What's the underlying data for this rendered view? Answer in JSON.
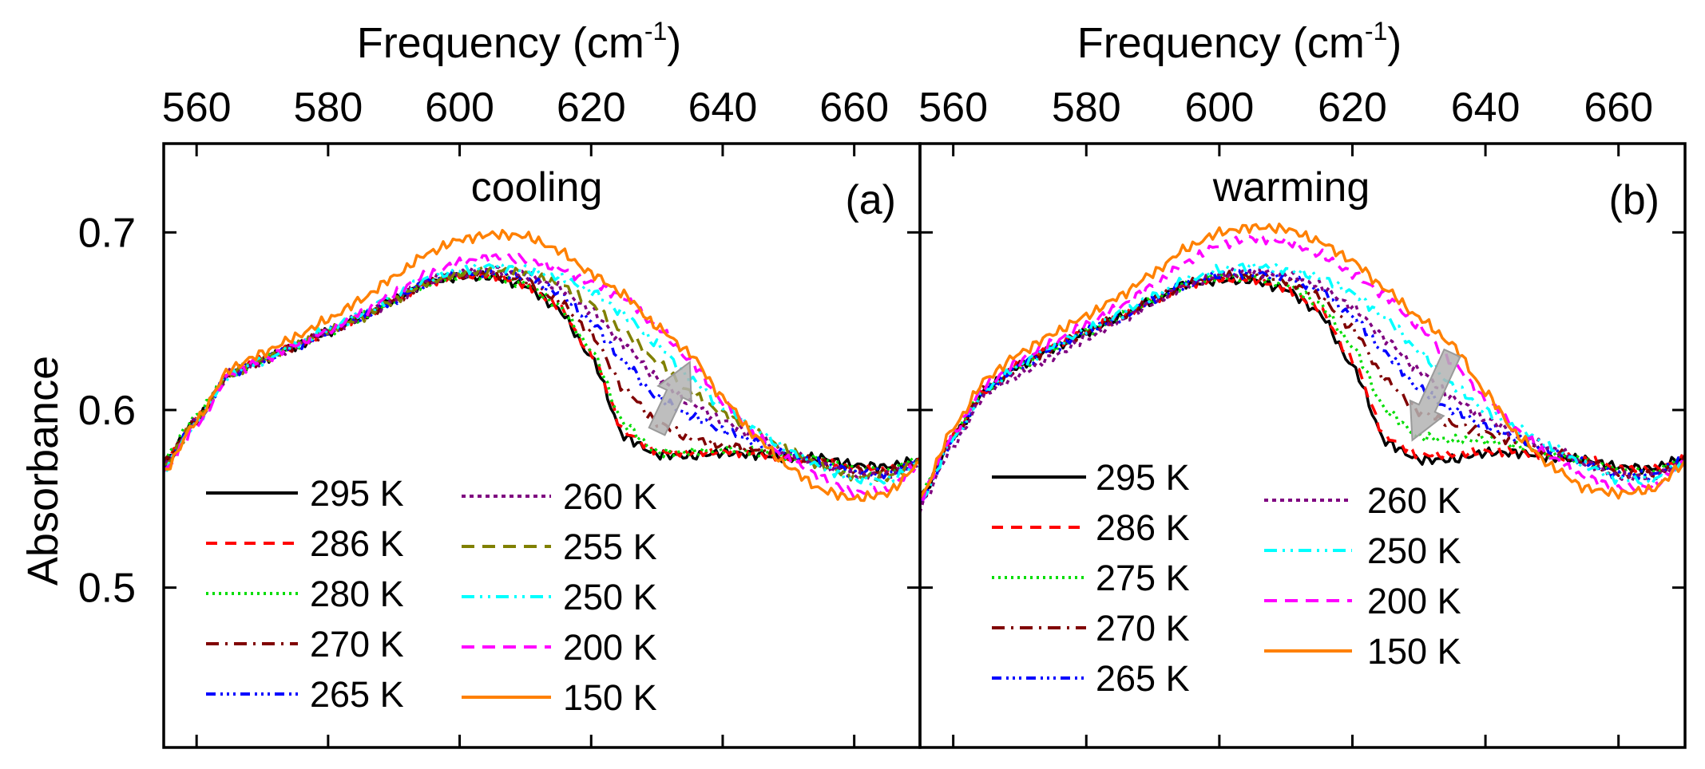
{
  "figure": {
    "xlabel_main": "Frequency (cm",
    "xlabel_sup": "-1",
    "xlabel_close": ")",
    "ylabel": "Absorbance"
  },
  "chart_data": [
    {
      "type": "line",
      "panel": "a",
      "title": "cooling",
      "tag": "(a)",
      "xlim": [
        555,
        670
      ],
      "ylim": [
        0.41,
        0.75
      ],
      "xticks": [
        "560",
        "580",
        "600",
        "620",
        "640",
        "660"
      ],
      "yticks": [
        "0.5",
        "0.6",
        "0.7"
      ],
      "x": [
        555,
        560,
        565,
        570,
        575,
        580,
        585,
        590,
        595,
        600,
        605,
        610,
        615,
        620,
        625,
        630,
        635,
        640,
        645,
        650,
        655,
        660,
        665,
        670
      ],
      "series": [
        {
          "name": "295 K",
          "color": "#000000",
          "dash": "solid",
          "values": [
            0.57,
            0.595,
            0.62,
            0.628,
            0.636,
            0.644,
            0.652,
            0.662,
            0.672,
            0.675,
            0.675,
            0.67,
            0.657,
            0.63,
            0.585,
            0.575,
            0.574,
            0.576,
            0.575,
            0.573,
            0.573,
            0.569,
            0.568,
            0.572
          ]
        },
        {
          "name": "286 K",
          "color": "#ff0000",
          "dash": "14 10",
          "values": [
            0.57,
            0.595,
            0.62,
            0.628,
            0.636,
            0.644,
            0.652,
            0.662,
            0.672,
            0.676,
            0.676,
            0.671,
            0.658,
            0.632,
            0.588,
            0.577,
            0.576,
            0.577,
            0.576,
            0.573,
            0.572,
            0.568,
            0.567,
            0.571
          ]
        },
        {
          "name": "280 K",
          "color": "#00dd00",
          "dash": "3 5",
          "values": [
            0.572,
            0.597,
            0.62,
            0.628,
            0.636,
            0.644,
            0.652,
            0.662,
            0.672,
            0.676,
            0.676,
            0.671,
            0.659,
            0.634,
            0.592,
            0.576,
            0.576,
            0.578,
            0.577,
            0.574,
            0.572,
            0.567,
            0.566,
            0.572
          ]
        },
        {
          "name": "270 K",
          "color": "#800000",
          "dash": "16 8 3 8",
          "values": [
            0.57,
            0.595,
            0.62,
            0.628,
            0.636,
            0.644,
            0.652,
            0.662,
            0.672,
            0.676,
            0.677,
            0.673,
            0.662,
            0.643,
            0.612,
            0.593,
            0.584,
            0.58,
            0.578,
            0.574,
            0.571,
            0.566,
            0.565,
            0.571
          ]
        },
        {
          "name": "265 K",
          "color": "#0000ff",
          "dash": "12 6 3 5 3 5 3 6",
          "values": [
            0.568,
            0.594,
            0.62,
            0.628,
            0.636,
            0.644,
            0.652,
            0.662,
            0.672,
            0.677,
            0.678,
            0.675,
            0.666,
            0.65,
            0.627,
            0.607,
            0.597,
            0.589,
            0.582,
            0.575,
            0.57,
            0.565,
            0.564,
            0.571
          ]
        },
        {
          "name": "260 K",
          "color": "#7f0080",
          "dash": "5 5",
          "values": [
            0.568,
            0.594,
            0.62,
            0.628,
            0.636,
            0.644,
            0.652,
            0.662,
            0.672,
            0.677,
            0.679,
            0.676,
            0.669,
            0.656,
            0.637,
            0.618,
            0.604,
            0.594,
            0.585,
            0.576,
            0.569,
            0.564,
            0.563,
            0.571
          ]
        },
        {
          "name": "255 K",
          "color": "#808000",
          "dash": "16 10",
          "values": [
            0.568,
            0.594,
            0.62,
            0.628,
            0.636,
            0.644,
            0.652,
            0.662,
            0.672,
            0.677,
            0.679,
            0.677,
            0.671,
            0.66,
            0.644,
            0.627,
            0.61,
            0.598,
            0.587,
            0.577,
            0.569,
            0.563,
            0.562,
            0.57
          ]
        },
        {
          "name": "250 K",
          "color": "#00ffff",
          "dash": "16 7 3 7 3 7",
          "values": [
            0.567,
            0.593,
            0.62,
            0.628,
            0.637,
            0.645,
            0.654,
            0.664,
            0.674,
            0.679,
            0.681,
            0.679,
            0.675,
            0.667,
            0.654,
            0.637,
            0.618,
            0.602,
            0.589,
            0.577,
            0.568,
            0.561,
            0.56,
            0.57
          ]
        },
        {
          "name": "200 K",
          "color": "#ff00ff",
          "dash": "16 10",
          "values": [
            0.565,
            0.591,
            0.62,
            0.628,
            0.637,
            0.645,
            0.655,
            0.666,
            0.676,
            0.683,
            0.686,
            0.685,
            0.68,
            0.672,
            0.663,
            0.647,
            0.628,
            0.605,
            0.585,
            0.572,
            0.562,
            0.553,
            0.555,
            0.57
          ]
        },
        {
          "name": "150 K",
          "color": "#ff8000",
          "dash": "solid",
          "values": [
            0.565,
            0.594,
            0.623,
            0.632,
            0.641,
            0.651,
            0.662,
            0.675,
            0.688,
            0.696,
            0.699,
            0.698,
            0.69,
            0.677,
            0.665,
            0.647,
            0.632,
            0.607,
            0.585,
            0.568,
            0.555,
            0.55,
            0.553,
            0.57
          ]
        }
      ],
      "legend": {
        "columns": [
          [
            "295 K",
            "286 K",
            "280 K",
            "270 K",
            "265 K"
          ],
          [
            "260 K",
            "255 K",
            "250 K",
            "200 K",
            "150 K"
          ]
        ]
      },
      "annotation": {
        "type": "arrow",
        "direction": "up",
        "color": "#b3b3b3",
        "from": [
          630,
          0.588
        ],
        "to": [
          635,
          0.627
        ]
      }
    },
    {
      "type": "line",
      "panel": "b",
      "title": "warming",
      "tag": "(b)",
      "xlim": [
        555,
        670
      ],
      "ylim": [
        0.41,
        0.75
      ],
      "xticks": [
        "560",
        "580",
        "600",
        "620",
        "640",
        "660"
      ],
      "yticks": [
        "0.5",
        "0.6",
        "0.7"
      ],
      "x": [
        555,
        560,
        565,
        570,
        575,
        580,
        585,
        590,
        595,
        600,
        605,
        610,
        615,
        620,
        625,
        630,
        635,
        640,
        645,
        650,
        655,
        660,
        665,
        670
      ],
      "series": [
        {
          "name": "295 K",
          "color": "#000000",
          "dash": "solid",
          "values": [
            0.55,
            0.585,
            0.612,
            0.625,
            0.635,
            0.644,
            0.652,
            0.662,
            0.671,
            0.673,
            0.673,
            0.668,
            0.655,
            0.625,
            0.582,
            0.572,
            0.572,
            0.576,
            0.576,
            0.573,
            0.572,
            0.568,
            0.567,
            0.573
          ]
        },
        {
          "name": "286 K",
          "color": "#ff0000",
          "dash": "14 10",
          "values": [
            0.55,
            0.585,
            0.612,
            0.625,
            0.635,
            0.644,
            0.652,
            0.662,
            0.671,
            0.674,
            0.674,
            0.669,
            0.657,
            0.628,
            0.585,
            0.575,
            0.575,
            0.577,
            0.577,
            0.574,
            0.572,
            0.567,
            0.566,
            0.572
          ]
        },
        {
          "name": "275 K",
          "color": "#00dd00",
          "dash": "3 5",
          "values": [
            0.552,
            0.586,
            0.612,
            0.625,
            0.635,
            0.644,
            0.652,
            0.662,
            0.671,
            0.675,
            0.675,
            0.671,
            0.66,
            0.636,
            0.6,
            0.585,
            0.583,
            0.583,
            0.58,
            0.575,
            0.571,
            0.566,
            0.565,
            0.572
          ]
        },
        {
          "name": "270 K",
          "color": "#800000",
          "dash": "16 8 3 8",
          "values": [
            0.55,
            0.585,
            0.612,
            0.625,
            0.635,
            0.644,
            0.652,
            0.662,
            0.671,
            0.675,
            0.676,
            0.673,
            0.664,
            0.646,
            0.617,
            0.599,
            0.592,
            0.587,
            0.582,
            0.576,
            0.571,
            0.565,
            0.564,
            0.572
          ]
        },
        {
          "name": "265 K",
          "color": "#0000ff",
          "dash": "12 6 3 5 3 5 3 6",
          "values": [
            0.548,
            0.583,
            0.612,
            0.625,
            0.635,
            0.644,
            0.652,
            0.662,
            0.671,
            0.676,
            0.677,
            0.675,
            0.668,
            0.653,
            0.632,
            0.612,
            0.6,
            0.591,
            0.584,
            0.577,
            0.57,
            0.564,
            0.563,
            0.572
          ]
        },
        {
          "name": "260 K",
          "color": "#7f0080",
          "dash": "5 5",
          "values": [
            0.545,
            0.58,
            0.61,
            0.62,
            0.63,
            0.64,
            0.65,
            0.66,
            0.67,
            0.676,
            0.678,
            0.676,
            0.67,
            0.658,
            0.64,
            0.622,
            0.607,
            0.595,
            0.586,
            0.578,
            0.57,
            0.563,
            0.562,
            0.571
          ]
        },
        {
          "name": "250 K",
          "color": "#00ffff",
          "dash": "16 7 3 7 3 7",
          "values": [
            0.548,
            0.584,
            0.612,
            0.625,
            0.636,
            0.645,
            0.654,
            0.664,
            0.673,
            0.679,
            0.681,
            0.679,
            0.675,
            0.666,
            0.652,
            0.633,
            0.614,
            0.6,
            0.589,
            0.579,
            0.569,
            0.561,
            0.56,
            0.571
          ]
        },
        {
          "name": "200 K",
          "color": "#ff00ff",
          "dash": "16 10",
          "values": [
            0.55,
            0.587,
            0.614,
            0.628,
            0.638,
            0.648,
            0.658,
            0.67,
            0.683,
            0.693,
            0.697,
            0.695,
            0.688,
            0.677,
            0.664,
            0.647,
            0.627,
            0.606,
            0.588,
            0.573,
            0.562,
            0.556,
            0.557,
            0.571
          ]
        },
        {
          "name": "150 K",
          "color": "#ff8000",
          "dash": "solid",
          "values": [
            0.55,
            0.59,
            0.618,
            0.632,
            0.643,
            0.653,
            0.664,
            0.677,
            0.691,
            0.7,
            0.703,
            0.702,
            0.695,
            0.684,
            0.668,
            0.652,
            0.637,
            0.61,
            0.585,
            0.568,
            0.556,
            0.553,
            0.555,
            0.57
          ]
        }
      ],
      "legend": {
        "columns": [
          [
            "295 K",
            "286 K",
            "275 K",
            "270 K",
            "265 K"
          ],
          [
            "260 K",
            "250 K",
            "200 K",
            "150 K"
          ]
        ]
      },
      "annotation": {
        "type": "arrow",
        "direction": "down",
        "color": "#b3b3b3",
        "from": [
          635,
          0.632
        ],
        "to": [
          629,
          0.583
        ]
      }
    }
  ]
}
